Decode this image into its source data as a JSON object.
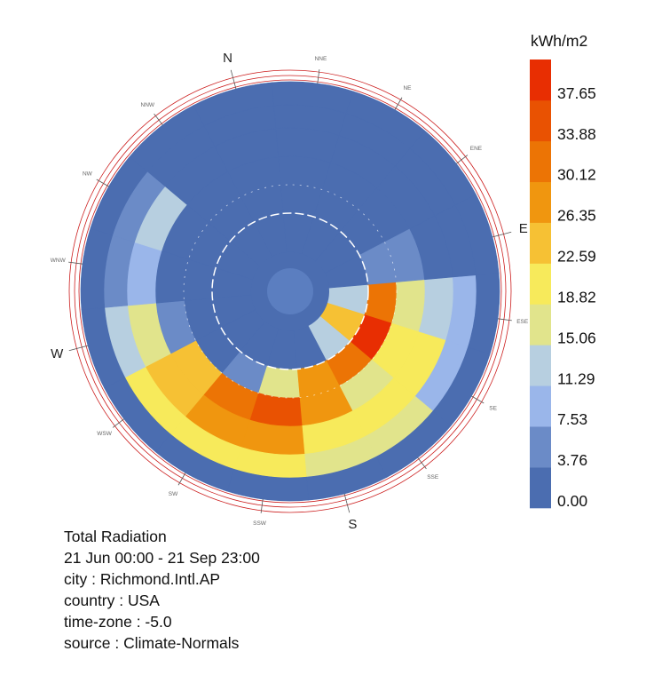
{
  "chart_data": {
    "type": "radiation-rose",
    "legend": {
      "title": "kWh/m2",
      "labels": [
        "0.00",
        "3.76",
        "7.53",
        "11.29",
        "15.06",
        "18.82",
        "22.59",
        "26.35",
        "30.12",
        "33.88",
        "37.65"
      ],
      "colors": [
        "#4b6db0",
        "#6b8bc7",
        "#9ab6ea",
        "#b7cfe0",
        "#e1e48c",
        "#f7ea5b",
        "#f6c134",
        "#f0960f",
        "#ec7405",
        "#e95202",
        "#e82e02"
      ],
      "min": 0.0,
      "max": 41.42,
      "step": 3.765
    },
    "compass": {
      "major": [
        "N",
        "E",
        "S",
        "W"
      ],
      "minor": [
        "NNE",
        "NE",
        "ENE",
        "ESE",
        "SE",
        "SSE",
        "SSW",
        "SW",
        "WSW",
        "WNW",
        "NW",
        "NNW"
      ],
      "rotation_deg": -15
    },
    "sector_start_deg": 85,
    "rings": [
      {
        "altitude": "high",
        "values": [
          11.5,
          24,
          11.5,
          2,
          2,
          2,
          2,
          2,
          2,
          2,
          2,
          2,
          2,
          2,
          2,
          2
        ]
      },
      {
        "altitude": "mid-high",
        "values": [
          31,
          38.5,
          32.5,
          26.5,
          17.5,
          7,
          2,
          2,
          2,
          2,
          2,
          2,
          2,
          2,
          2,
          7
        ]
      },
      {
        "altitude": "mid-low",
        "values": [
          16,
          21,
          17.5,
          28.5,
          35,
          31,
          24,
          7,
          2,
          2,
          2,
          2,
          2,
          2,
          2,
          5
        ]
      },
      {
        "altitude": "low",
        "values": [
          15,
          22.5,
          22,
          19.5,
          27,
          28,
          23,
          18,
          9,
          11.5,
          2,
          2,
          2,
          2,
          2,
          2
        ]
      },
      {
        "altitude": "horizon",
        "values": [
          8,
          8,
          15.5,
          15.5,
          19,
          22,
          20.5,
          13,
          7,
          4,
          2,
          2,
          2,
          2,
          2,
          2
        ]
      },
      {
        "altitude": "below",
        "values": [
          3,
          3,
          3,
          3,
          3,
          3,
          3,
          3,
          3,
          3,
          3,
          3,
          3,
          3,
          3,
          3
        ]
      }
    ]
  },
  "info": {
    "title": "Total Radiation",
    "period": "21 Jun 00:00 - 21 Sep 23:00",
    "city": "city : Richmond.Intl.AP",
    "country": "country : USA",
    "timezone": "time-zone : -5.0",
    "source": "source : Climate-Normals"
  }
}
